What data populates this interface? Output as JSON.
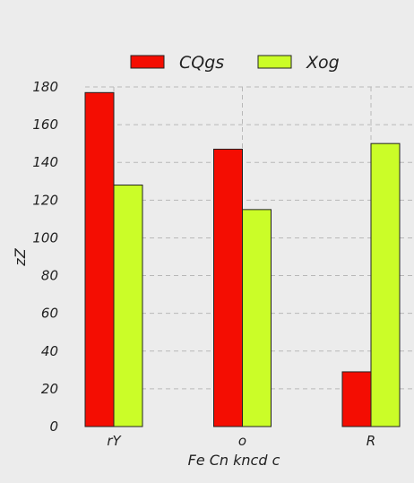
{
  "chart_data": {
    "type": "bar",
    "categories": [
      "rY",
      "o",
      "R"
    ],
    "series": [
      {
        "name": "CQgs",
        "color": "#f40d02",
        "values": [
          177,
          147,
          29
        ]
      },
      {
        "name": "Xog",
        "color": "#cbfd28",
        "values": [
          128,
          115,
          150
        ]
      }
    ],
    "xlabel": "Fe Cn kncd c",
    "ylabel": "zZ",
    "ylim": [
      0,
      180
    ],
    "yticks": [
      0,
      20,
      40,
      60,
      80,
      100,
      120,
      140,
      160,
      180
    ],
    "grid": true,
    "legend_position": "top"
  }
}
